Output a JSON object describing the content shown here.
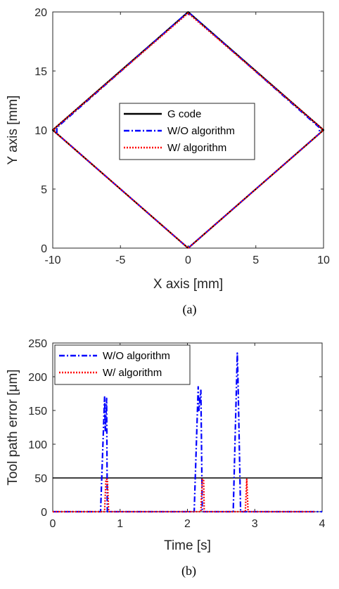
{
  "chart_data": [
    {
      "type": "line",
      "panel_label": "(a)",
      "xlabel": "X axis [mm]",
      "ylabel": "Y axis [mm]",
      "xlim": [
        -10,
        10
      ],
      "ylim": [
        0,
        20
      ],
      "xticks": [
        "-10",
        "-5",
        "0",
        "5",
        "10"
      ],
      "yticks": [
        "0",
        "5",
        "10",
        "15",
        "20"
      ],
      "legend_position": "center",
      "grid": false,
      "series": [
        {
          "name": "G code",
          "color": "#000000",
          "style": "solid",
          "x": [
            0,
            10,
            0,
            -10,
            0
          ],
          "y": [
            0,
            10,
            20,
            10,
            0
          ]
        },
        {
          "name": "W/O algorithm",
          "color": "#0000ff",
          "style": "dashdot",
          "x": [
            0,
            9.7,
            9.7,
            0.2,
            -0.2,
            -9.7,
            -9.7,
            -0.2,
            0
          ],
          "y": [
            0,
            9.7,
            10.2,
            19.8,
            19.8,
            10.2,
            9.7,
            0.2,
            0
          ]
        },
        {
          "name": "W/ algorithm",
          "color": "#ff0000",
          "style": "dotted",
          "x": [
            0,
            9.9,
            9.9,
            0,
            -9.9,
            -9.9,
            0
          ],
          "y": [
            0,
            9.9,
            10.1,
            19.9,
            10.1,
            9.9,
            0
          ]
        }
      ]
    },
    {
      "type": "line",
      "panel_label": "(b)",
      "xlabel": "Time [s]",
      "ylabel": "Tool path error [μm]",
      "xlim": [
        0,
        4
      ],
      "ylim": [
        0,
        250
      ],
      "xticks": [
        "0",
        "1",
        "2",
        "3",
        "4"
      ],
      "yticks": [
        "0",
        "50",
        "100",
        "150",
        "200",
        "250"
      ],
      "legend_position": "top-left",
      "grid": false,
      "threshold": {
        "value": 50,
        "color": "#000000"
      },
      "series": [
        {
          "name": "W/O algorithm",
          "color": "#0000ff",
          "style": "dashdot",
          "x": [
            0,
            0.71,
            0.77,
            0.78,
            0.8,
            0.81,
            2.1,
            2.16,
            2.17,
            2.2,
            2.22,
            2.68,
            2.74,
            2.75,
            2.79,
            2.82,
            4.0
          ],
          "y": [
            0,
            0,
            170,
            120,
            168,
            0,
            0,
            185,
            150,
            180,
            0,
            0,
            235,
            200,
            0,
            0,
            0
          ]
        },
        {
          "name": "W/ algorithm",
          "color": "#ff0000",
          "style": "dotted",
          "x": [
            0,
            0.77,
            0.79,
            0.81,
            0.83,
            2.2,
            2.22,
            2.24,
            2.25,
            2.86,
            2.88,
            2.9,
            3.9
          ],
          "y": [
            0,
            0,
            48,
            48,
            0,
            0,
            48,
            48,
            0,
            0,
            48,
            0,
            0
          ]
        }
      ]
    }
  ]
}
